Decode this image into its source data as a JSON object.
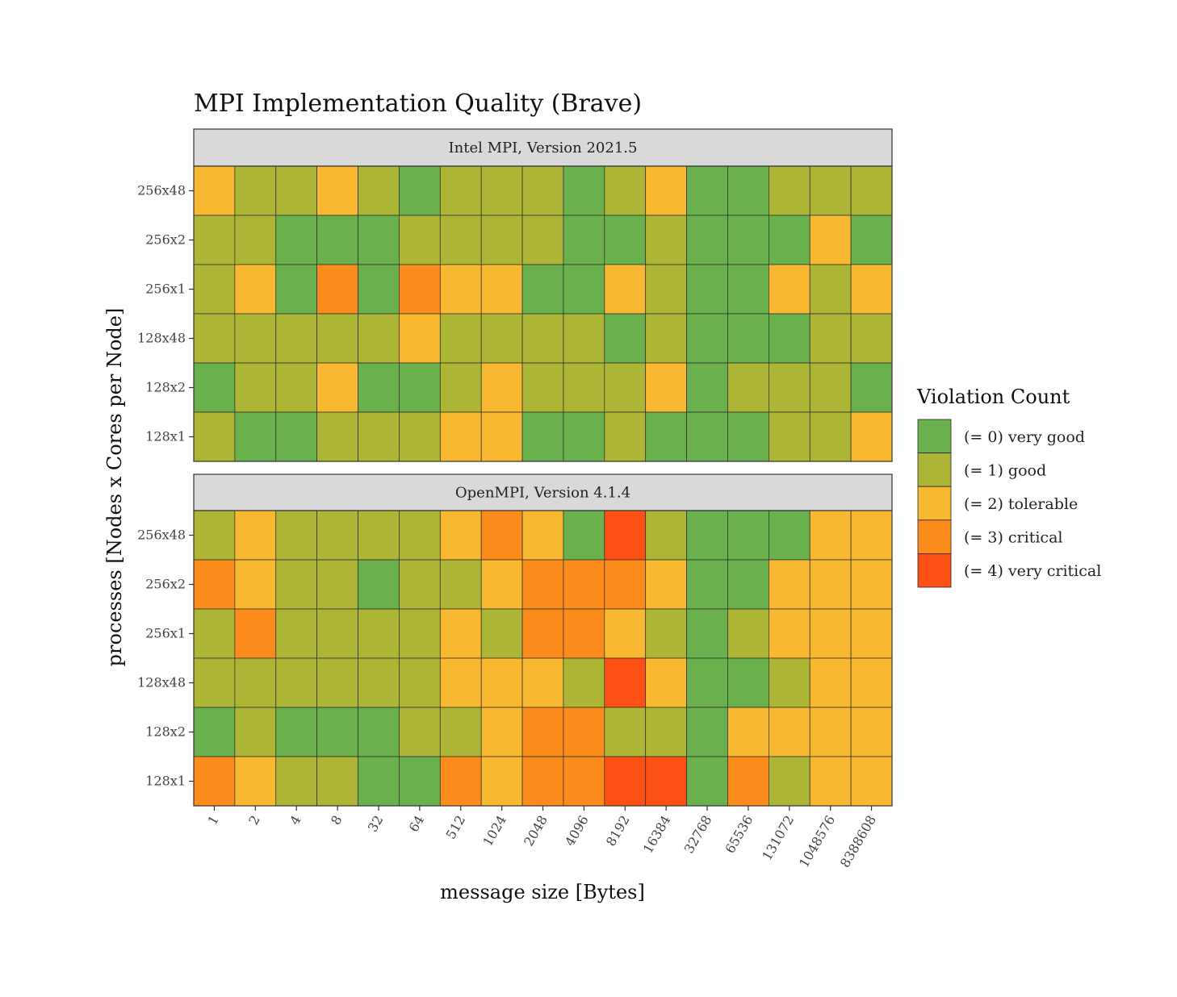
{
  "chart_data": {
    "type": "heatmap",
    "title": "MPI Implementation Quality (Brave)",
    "xlabel": "message size [Bytes]",
    "ylabel": "processes [Nodes x Cores per Node]",
    "x_categories": [
      "1",
      "2",
      "4",
      "8",
      "32",
      "64",
      "512",
      "1024",
      "2048",
      "4096",
      "8192",
      "16384",
      "32768",
      "65536",
      "131072",
      "1048576",
      "8388608"
    ],
    "y_categories_top_to_bottom": [
      "256x48",
      "256x2",
      "256x1",
      "128x48",
      "128x2",
      "128x1"
    ],
    "legend": {
      "title": "Violation Count",
      "items": [
        {
          "value": 0,
          "label": "(= 0) very good",
          "color": "#6ab04c"
        },
        {
          "value": 1,
          "label": "(= 1) good",
          "color": "#acb535"
        },
        {
          "value": 2,
          "label": "(= 2) tolerable",
          "color": "#f9b832"
        },
        {
          "value": 3,
          "label": "(= 3) critical",
          "color": "#fb8c1b"
        },
        {
          "value": 4,
          "label": "(= 4) very critical",
          "color": "#fd5015"
        }
      ]
    },
    "panels": [
      {
        "name": "Intel MPI, Version 2021.5",
        "values": [
          [
            2,
            1,
            1,
            2,
            1,
            0,
            1,
            1,
            1,
            0,
            1,
            2,
            0,
            0,
            1,
            1,
            1
          ],
          [
            1,
            1,
            0,
            0,
            0,
            1,
            1,
            1,
            1,
            0,
            0,
            1,
            0,
            0,
            0,
            2,
            0
          ],
          [
            1,
            2,
            0,
            3,
            0,
            3,
            2,
            2,
            0,
            0,
            2,
            1,
            0,
            0,
            2,
            1,
            2
          ],
          [
            1,
            1,
            1,
            1,
            1,
            2,
            1,
            1,
            1,
            1,
            0,
            1,
            0,
            0,
            0,
            1,
            1
          ],
          [
            0,
            1,
            1,
            2,
            0,
            0,
            1,
            2,
            1,
            1,
            1,
            2,
            0,
            1,
            1,
            1,
            0
          ],
          [
            1,
            0,
            0,
            1,
            1,
            1,
            2,
            2,
            0,
            0,
            1,
            0,
            0,
            0,
            1,
            1,
            2
          ]
        ]
      },
      {
        "name": "OpenMPI, Version 4.1.4",
        "values": [
          [
            1,
            2,
            1,
            1,
            1,
            1,
            2,
            3,
            2,
            0,
            4,
            1,
            0,
            0,
            0,
            2,
            2
          ],
          [
            3,
            2,
            1,
            1,
            0,
            1,
            1,
            2,
            3,
            3,
            3,
            2,
            0,
            0,
            2,
            2,
            2
          ],
          [
            1,
            3,
            1,
            1,
            1,
            1,
            2,
            1,
            3,
            3,
            2,
            1,
            0,
            1,
            2,
            2,
            2
          ],
          [
            1,
            1,
            1,
            1,
            1,
            1,
            2,
            2,
            2,
            1,
            4,
            2,
            0,
            0,
            1,
            2,
            2
          ],
          [
            0,
            1,
            0,
            0,
            0,
            1,
            1,
            2,
            3,
            3,
            1,
            1,
            0,
            2,
            2,
            2,
            2
          ],
          [
            3,
            2,
            1,
            1,
            0,
            0,
            3,
            2,
            3,
            3,
            4,
            4,
            0,
            3,
            1,
            2,
            2
          ]
        ]
      }
    ]
  }
}
